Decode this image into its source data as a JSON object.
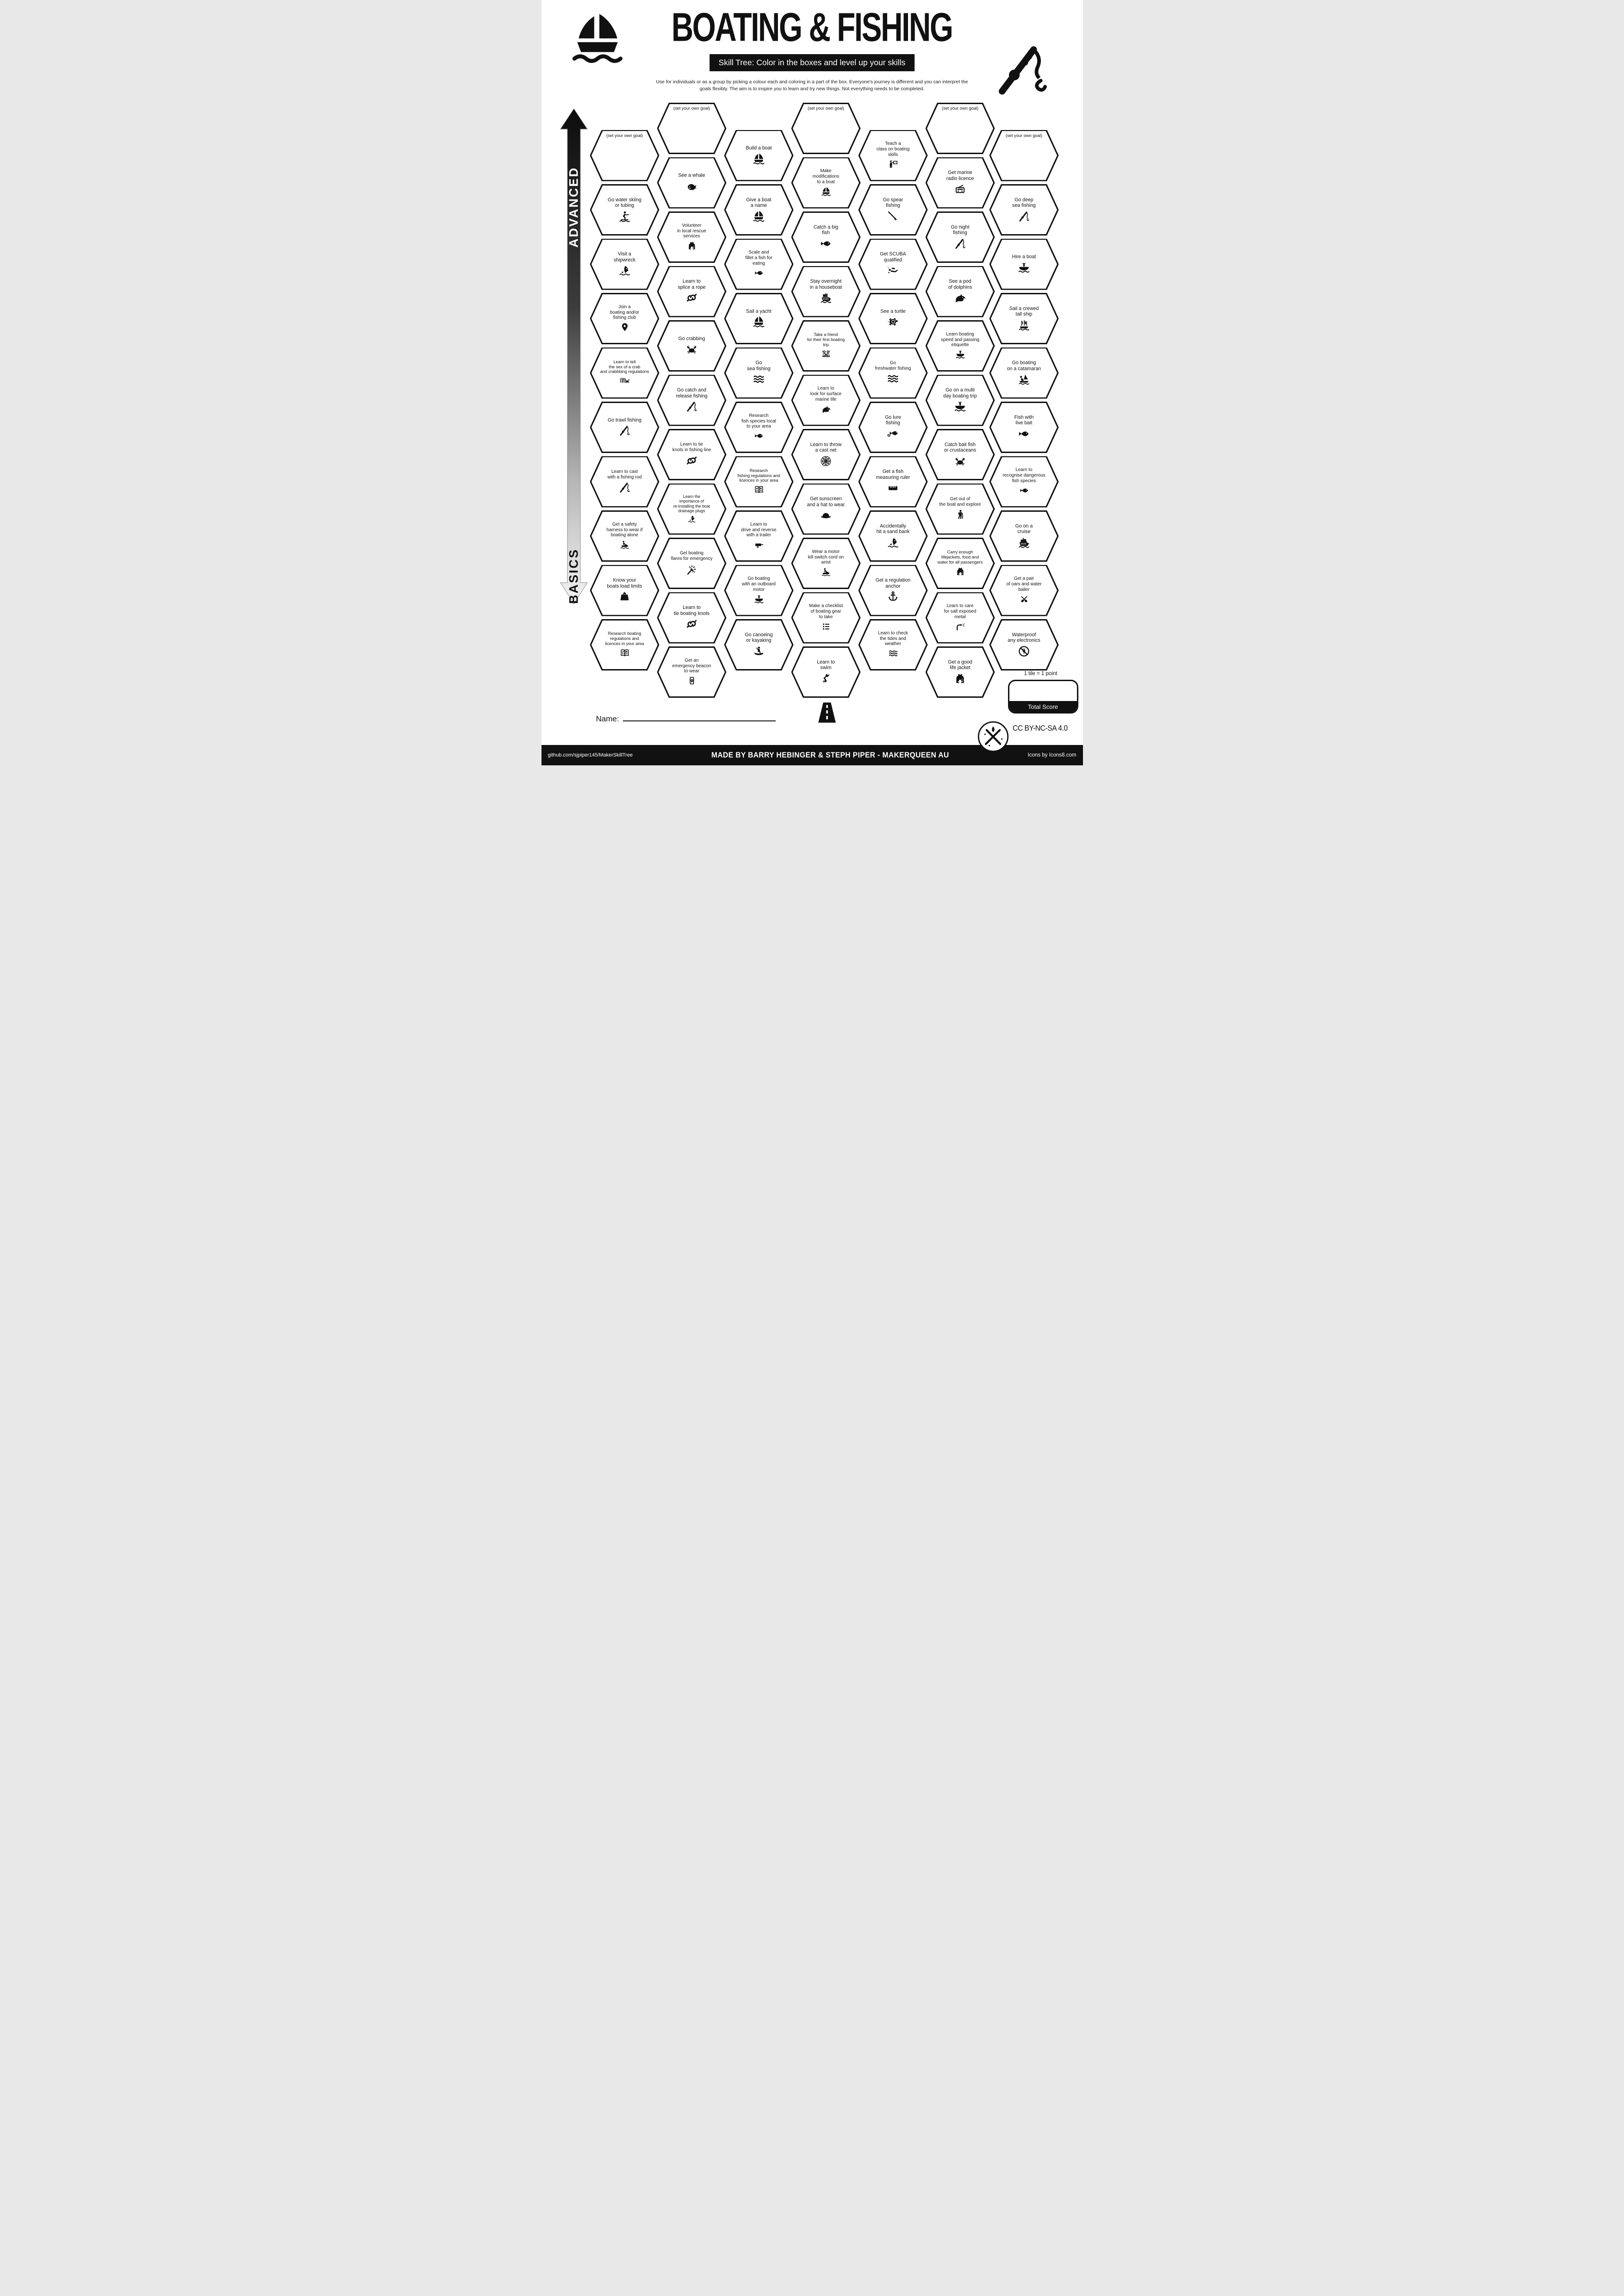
{
  "header": {
    "title": "BOATING & FISHING",
    "subtitle": "Skill Tree:  Color in the boxes and level up your skills",
    "description": "Use for individuals or as a group by picking a colour each and coloring in a part of the box.  Everyone's journey is different and you can interpret the goals flexibly.  The aim is to inspire you to learn and try new things. Not everything needs to be completed."
  },
  "axis": {
    "top": "ADVANCED",
    "bottom": "BASICS"
  },
  "legend": {
    "tile_points": "1 tile = 1 point",
    "total_score": "Total Score"
  },
  "name_label": "Name:",
  "license": "CC BY-NC-SA 4.0",
  "footer": {
    "left": "github.com/sjpiper145/MakerSkillTree",
    "center": "MADE BY BARRY HEBINGER & STEPH PIPER  -  MAKERQUEEN AU",
    "right": "Icons by Icons8.com"
  },
  "colors": {
    "ink": "#111111",
    "paper": "#ffffff"
  },
  "icons": {
    "top_left_logo": "sailboat-icon",
    "top_right_logo": "fishing-rod-icon",
    "start_marker": "road-icon",
    "credit_badge": "maker-tools-icon"
  },
  "hexes": [
    {
      "c": 0,
      "r": 0,
      "goal": true,
      "label": "(set your own goal)"
    },
    {
      "c": 0,
      "r": 1,
      "icon": "skier",
      "label": "Go water skiing\nor tubing"
    },
    {
      "c": 0,
      "r": 2,
      "icon": "wreck",
      "label": "Visit a\nshipwreck"
    },
    {
      "c": 0,
      "r": 3,
      "icon": "pin",
      "label": "Join a\nboating and/or\nfishing club"
    },
    {
      "c": 0,
      "r": 4,
      "icon": "bookcrab",
      "label": "Learn to tell\nthe sex of a crab\nand crabbbing regulations"
    },
    {
      "c": 0,
      "r": 5,
      "icon": "rod",
      "label": "Go trawl fishing"
    },
    {
      "c": 0,
      "r": 6,
      "icon": "rod",
      "label": "Learn to cast\nwith a fishing rod"
    },
    {
      "c": 0,
      "r": 7,
      "icon": "jetski",
      "label": "Get a safety\nharness to wear if\nboating alone"
    },
    {
      "c": 0,
      "r": 8,
      "icon": "weight",
      "label": "Know your\nboats load limits"
    },
    {
      "c": 0,
      "r": 9,
      "icon": "book",
      "label": "Research boating\nregulations and\nlicences in your area"
    },
    {
      "c": 1,
      "r": 0,
      "goal": true,
      "label": "(set your own goal)"
    },
    {
      "c": 1,
      "r": 1,
      "icon": "whale",
      "label": "See a whale"
    },
    {
      "c": 1,
      "r": 2,
      "icon": "vest",
      "label": "Volunteer\nin local rescue\nservices"
    },
    {
      "c": 1,
      "r": 3,
      "icon": "knot",
      "label": "Learn to\nsplice a rope"
    },
    {
      "c": 1,
      "r": 4,
      "icon": "crab",
      "label": "Go crabbing"
    },
    {
      "c": 1,
      "r": 5,
      "icon": "rod",
      "label": "Go catch and\nrelease fishing"
    },
    {
      "c": 1,
      "r": 6,
      "icon": "knot",
      "label": "Learn to tie\nknots in fishing line"
    },
    {
      "c": 1,
      "r": 7,
      "icon": "wreck",
      "label": "Learn the\nimportance of\nre-installing the boat\ndrainage plugs"
    },
    {
      "c": 1,
      "r": 8,
      "icon": "flare",
      "label": "Get boating\nflares for emergency"
    },
    {
      "c": 1,
      "r": 9,
      "icon": "knot",
      "label": "Learn to\ntie boating knots"
    },
    {
      "c": 1,
      "r": 10,
      "icon": "beacon",
      "label": "Get an\nemergency beacon\nto wear"
    },
    {
      "c": 2,
      "r": 0,
      "icon": "sailboat",
      "label": "Build a boat"
    },
    {
      "c": 2,
      "r": 1,
      "icon": "sailboat",
      "label": "Give a boat\na name"
    },
    {
      "c": 2,
      "r": 2,
      "icon": "fish",
      "label": "Scale and\nfillet a fish for\neating"
    },
    {
      "c": 2,
      "r": 3,
      "icon": "sailboat",
      "label": "Sail a yacht"
    },
    {
      "c": 2,
      "r": 4,
      "icon": "waves",
      "label": "Go\nsea fishing"
    },
    {
      "c": 2,
      "r": 5,
      "icon": "fish",
      "label": "Research\nfish species local\nto your area"
    },
    {
      "c": 2,
      "r": 6,
      "icon": "book",
      "label": "Research\nfishing regulations and\nlicences in your area"
    },
    {
      "c": 2,
      "r": 7,
      "icon": "trailer",
      "label": "Learn to\ndrive and reverse\nwith a trailer"
    },
    {
      "c": 2,
      "r": 8,
      "icon": "motorboat",
      "label": "Go boating\nwith an outboard\nmotor"
    },
    {
      "c": 2,
      "r": 9,
      "icon": "canoe",
      "label": "Go canoeing\nor kayaking"
    },
    {
      "c": 3,
      "r": 0,
      "goal": true,
      "label": "(set your own goal)"
    },
    {
      "c": 3,
      "r": 1,
      "icon": "sailboat",
      "label": "Make\nmodifications\nto a boat"
    },
    {
      "c": 3,
      "r": 2,
      "icon": "fish",
      "label": "Catch a big\nfish"
    },
    {
      "c": 3,
      "r": 3,
      "icon": "ferry",
      "label": "Stay overnight\nin a houseboat"
    },
    {
      "c": 3,
      "r": 4,
      "icon": "friends",
      "label": "Take a friend\nfor their first boating\ntrip"
    },
    {
      "c": 3,
      "r": 5,
      "icon": "dolphin",
      "label": "Learn to\nlook for surface\nmarine life"
    },
    {
      "c": 3,
      "r": 6,
      "icon": "net",
      "label": "Learn to throw\na cast net"
    },
    {
      "c": 3,
      "r": 7,
      "icon": "hat",
      "label": "Get sunscreen\nand a hat to wear"
    },
    {
      "c": 3,
      "r": 8,
      "icon": "jetski",
      "label": "Wear a motor\nkill switch cord on\nwrist"
    },
    {
      "c": 3,
      "r": 9,
      "icon": "checklist",
      "label": "Make a checklist\nof boating gear\nto take"
    },
    {
      "c": 3,
      "r": 10,
      "icon": "swimmer",
      "label": "Learn to\nswim"
    },
    {
      "c": 4,
      "r": 0,
      "icon": "teacher",
      "label": "Teach a\nclass on boating\nskills"
    },
    {
      "c": 4,
      "r": 1,
      "icon": "spear",
      "label": "Go spear\nfishing"
    },
    {
      "c": 4,
      "r": 2,
      "icon": "scuba",
      "label": "Get SCUBA\nqualified"
    },
    {
      "c": 4,
      "r": 3,
      "icon": "turtle",
      "label": "See a turtle"
    },
    {
      "c": 4,
      "r": 4,
      "icon": "waves",
      "label": "Go\nfreshwater fishing"
    },
    {
      "c": 4,
      "r": 5,
      "icon": "lurefish",
      "label": "Go lure\nfishing"
    },
    {
      "c": 4,
      "r": 6,
      "icon": "ruler",
      "label": "Get a fish\nmeasuring ruler"
    },
    {
      "c": 4,
      "r": 7,
      "icon": "wreck",
      "label": "Accidentally\nhit a sand bank"
    },
    {
      "c": 4,
      "r": 8,
      "icon": "anchor",
      "label": "Get a regulation\nanchor"
    },
    {
      "c": 4,
      "r": 9,
      "icon": "waves",
      "label": "Learn to check\nthe tides and\nweather"
    },
    {
      "c": 5,
      "r": 0,
      "goal": true,
      "label": "(set your own goal)"
    },
    {
      "c": 5,
      "r": 1,
      "icon": "radio",
      "label": "Get marine\nradio licence"
    },
    {
      "c": 5,
      "r": 2,
      "icon": "rod",
      "label": "Go night\nfishing"
    },
    {
      "c": 5,
      "r": 3,
      "icon": "dolphin",
      "label": "See a pod\nof dolphins"
    },
    {
      "c": 5,
      "r": 4,
      "icon": "motorboat",
      "label": "Learn boating\nspeed and passing\netiquette"
    },
    {
      "c": 5,
      "r": 5,
      "icon": "motorboat",
      "label": "Go on a multi\nday boating trip"
    },
    {
      "c": 5,
      "r": 6,
      "icon": "crab",
      "label": "Catch bait fish\nor crustaceans"
    },
    {
      "c": 5,
      "r": 7,
      "icon": "hiker",
      "label": "Get out of\nthe boat and explore"
    },
    {
      "c": 5,
      "r": 8,
      "icon": "vest",
      "label": "Carry enough\nlifejackets, food and\nwater for all passengers"
    },
    {
      "c": 5,
      "r": 9,
      "icon": "hose",
      "label": "Learn to care\nfor salt exposed\nmetal"
    },
    {
      "c": 5,
      "r": 10,
      "icon": "vest",
      "label": "Get a good\nlife jacket"
    },
    {
      "c": 6,
      "r": 0,
      "goal": true,
      "label": "(set your own goal)"
    },
    {
      "c": 6,
      "r": 1,
      "icon": "rod",
      "label": "Go deep\nsea fishing"
    },
    {
      "c": 6,
      "r": 2,
      "icon": "motorboat",
      "label": "Hire a boat"
    },
    {
      "c": 6,
      "r": 3,
      "icon": "tallship",
      "label": "Sail a crewed\ntall ship"
    },
    {
      "c": 6,
      "r": 4,
      "icon": "catamaran",
      "label": "Go boating\non a catamaran"
    },
    {
      "c": 6,
      "r": 5,
      "icon": "fish",
      "label": "Fish with\nlive bait"
    },
    {
      "c": 6,
      "r": 6,
      "icon": "fish",
      "label": "Learn to\nrecognise dangerous\nfish species"
    },
    {
      "c": 6,
      "r": 7,
      "icon": "cruise",
      "label": "Go on a\ncruise"
    },
    {
      "c": 6,
      "r": 8,
      "icon": "oars",
      "label": "Get a pair\nof oars and water\nbailer"
    },
    {
      "c": 6,
      "r": 9,
      "icon": "nowater",
      "label": "Waterproof\nany electronics"
    }
  ]
}
